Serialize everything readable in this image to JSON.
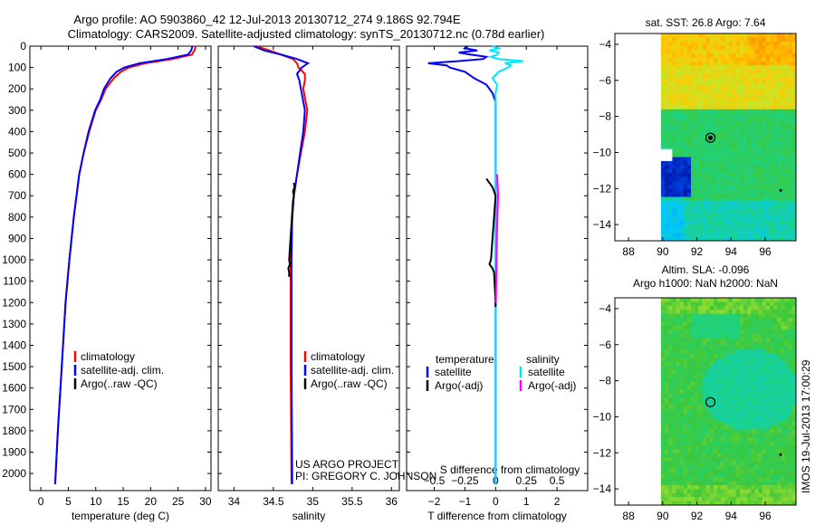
{
  "title": {
    "line1": "Argo profile: AO 5903860_42 12-Jul-2013 20130712_274 9.186S 92.794E",
    "line2": "Climatology: CARS2009. Satellite-adjusted climatology: synTS_20130712.nc (0.78d earlier)"
  },
  "colors": {
    "clim": "#ff0000",
    "sat": "#0000ff",
    "argo": "#000000",
    "sal_sat": "#00e5ff",
    "sal_argo": "#ff00ff"
  },
  "chart_data": [
    {
      "type": "line",
      "xlabel": "temperature (deg C)",
      "xticks": [
        "0",
        "5",
        "10",
        "15",
        "20",
        "25",
        "30"
      ],
      "xlim": [
        -2,
        31
      ],
      "ylim": [
        2080,
        0
      ],
      "yticks": [
        "0",
        "100",
        "200",
        "300",
        "400",
        "500",
        "600",
        "700",
        "800",
        "900",
        "1000",
        "1100",
        "1200",
        "1300",
        "1400",
        "1500",
        "1600",
        "1700",
        "1800",
        "1900",
        "2000"
      ],
      "legend": [
        "climatology",
        "satellite-adj. clim.",
        "Argo(..raw -QC)"
      ],
      "series": [
        {
          "name": "climatology",
          "color": "#ff0000",
          "depth": [
            0,
            20,
            40,
            60,
            80,
            100,
            120,
            150,
            200,
            250,
            300,
            400,
            500,
            600,
            700,
            800,
            1000,
            1200,
            1500,
            1800,
            2050
          ],
          "values": [
            28.2,
            28.0,
            27.5,
            24,
            19,
            16,
            14.6,
            13.3,
            11.8,
            11.0,
            10.0,
            8.8,
            7.8,
            7.0,
            6.5,
            6.0,
            5.2,
            4.5,
            3.8,
            3.1,
            2.6
          ]
        },
        {
          "name": "satellite-adj. clim.",
          "color": "#0000ff",
          "depth": [
            0,
            20,
            40,
            60,
            80,
            100,
            120,
            150,
            200,
            250,
            300,
            400,
            500,
            600,
            700,
            800,
            1000,
            1200,
            1500,
            1800,
            2050
          ],
          "values": [
            27.6,
            27.4,
            26.8,
            23,
            18,
            15.2,
            13.8,
            12.7,
            11.5,
            10.8,
            9.9,
            8.7,
            7.8,
            7.0,
            6.5,
            6.0,
            5.2,
            4.5,
            3.8,
            3.1,
            2.6
          ]
        }
      ]
    },
    {
      "type": "line",
      "xlabel": "salinity",
      "xticks": [
        "34",
        "34.5",
        "35",
        "35.5",
        "36"
      ],
      "xlim": [
        33.8,
        36.1
      ],
      "ylim": [
        2080,
        0
      ],
      "legend": [
        "climatology",
        "satellite-adj. clim.",
        "Argo(..raw -QC)"
      ],
      "series": [
        {
          "name": "climatology",
          "color": "#ff0000",
          "depth": [
            0,
            20,
            40,
            60,
            80,
            100,
            130,
            160,
            200,
            300,
            400,
            500,
            600,
            700,
            800,
            1000,
            1200,
            1500,
            2050
          ],
          "values": [
            34.28,
            34.45,
            34.6,
            34.75,
            34.8,
            34.82,
            34.9,
            34.9,
            34.88,
            34.93,
            34.9,
            34.85,
            34.8,
            34.76,
            34.74,
            34.72,
            34.72,
            34.72,
            34.73
          ]
        },
        {
          "name": "satellite-adj. clim.",
          "color": "#0000ff",
          "depth": [
            0,
            20,
            40,
            60,
            80,
            100,
            130,
            160,
            200,
            300,
            400,
            500,
            600,
            700,
            800,
            1000,
            1200,
            1500,
            2050
          ],
          "values": [
            34.25,
            34.38,
            34.6,
            34.8,
            34.94,
            34.86,
            34.8,
            34.83,
            34.85,
            34.9,
            34.88,
            34.84,
            34.8,
            34.76,
            34.74,
            34.73,
            34.73,
            34.73,
            34.74
          ]
        },
        {
          "name": "Argo(..raw -QC)",
          "color": "#000000",
          "depth": [
            640,
            660,
            680,
            700,
            720,
            1000,
            1020,
            1040,
            1060,
            1080
          ],
          "values": [
            34.76,
            34.77,
            34.75,
            34.76,
            34.75,
            34.7,
            34.71,
            34.69,
            34.7,
            34.7
          ]
        }
      ]
    },
    {
      "type": "line",
      "xlabel": "T difference from climatology",
      "xlabel2": "S difference from climatology",
      "xticks": [
        "−2",
        "−1",
        "0",
        "1",
        "2"
      ],
      "xticks2": [
        "−0.5",
        "−0.25",
        "0",
        "0.25",
        "0.5"
      ],
      "xlim": [
        -2.9,
        3
      ],
      "ylim": [
        2080,
        0
      ],
      "legend": [
        "temperature",
        "satellite",
        "Argo(-adj)",
        "salinity",
        "satellite",
        "Argo(-adj)"
      ],
      "series": [
        {
          "name": "satellite",
          "color": "#0000ff",
          "depth": [
            0,
            10,
            20,
            30,
            40,
            50,
            60,
            70,
            80,
            90,
            100,
            120,
            150,
            180,
            220,
            260,
            300,
            400,
            500,
            600,
            800,
            1000,
            1500,
            2050
          ],
          "values": [
            -0.9,
            -1.0,
            -0.6,
            -1.2,
            -0.8,
            -0.3,
            -0.4,
            -1.2,
            -2.2,
            -1.6,
            -1.5,
            -1.0,
            -0.7,
            -0.3,
            -0.1,
            0,
            0,
            0,
            0,
            0,
            0,
            0,
            0,
            0
          ]
        },
        {
          "name": "satellite",
          "color": "#00e5ff",
          "depth": [
            0,
            10,
            20,
            30,
            40,
            50,
            60,
            70,
            80,
            90,
            100,
            120,
            150,
            180,
            220,
            260,
            300,
            400,
            600,
            1000,
            2050
          ],
          "values": [
            -0.1,
            0.1,
            -0.2,
            0.1,
            0.05,
            -0.15,
            0.1,
            0.9,
            0.3,
            0.5,
            0.4,
            0.1,
            -0.1,
            0.05,
            0,
            0,
            0,
            0,
            0,
            0,
            0
          ]
        },
        {
          "name": "Argo(-adj)",
          "color": "#000000",
          "depth": [
            620,
            640,
            660,
            680,
            700,
            1000,
            1020,
            1040,
            1060,
            1200,
            1220
          ],
          "values": [
            -0.3,
            -0.2,
            -0.1,
            -0.05,
            0,
            -0.15,
            -0.2,
            -0.1,
            -0.05,
            0,
            0
          ]
        },
        {
          "name": "Argo(-adj)",
          "color": "#ff00ff",
          "depth": [
            600,
            700,
            800,
            900,
            1000,
            1100,
            1200
          ],
          "values": [
            0.05,
            0.08,
            0.06,
            0.04,
            0.03,
            0.02,
            0.01
          ]
        }
      ]
    },
    {
      "type": "heatmap",
      "title": "sat. SST: 26.8 Argo: 7.64",
      "xticks": [
        "88",
        "90",
        "92",
        "94",
        "96"
      ],
      "xlim": [
        87.2,
        97.8
      ],
      "yticks": [
        "−4",
        "−6",
        "−8",
        "−10",
        "−12",
        "−14"
      ],
      "ylim": [
        -14.9,
        -3.4
      ],
      "data_xlim": [
        89.9,
        97.8
      ],
      "marker": {
        "lon": 92.794,
        "lat": -9.186
      }
    },
    {
      "type": "heatmap",
      "title": "Altim. SLA: -0.096",
      "subtitle": "Argo h1000: NaN h2000: NaN",
      "xticks": [
        "88",
        "90",
        "92",
        "94",
        "96"
      ],
      "xlim": [
        87.2,
        97.8
      ],
      "yticks": [
        "−4",
        "−6",
        "−8",
        "−10",
        "−12",
        "−14"
      ],
      "ylim": [
        -14.9,
        -3.4
      ],
      "data_xlim": [
        89.9,
        97.8
      ],
      "marker": {
        "lon": 92.794,
        "lat": -9.186
      }
    }
  ],
  "credits": {
    "line1": "US ARGO PROJECT",
    "line2": "PI: GREGORY C. JOHNSON"
  },
  "stamp": "IMOS 19-Jul-2013 17:00:29"
}
